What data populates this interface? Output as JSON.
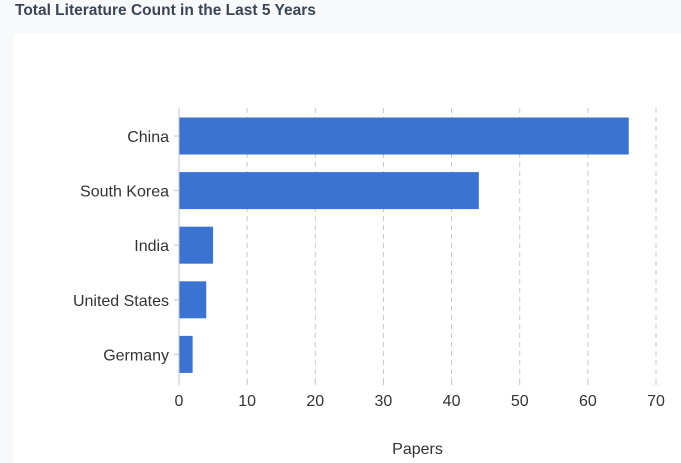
{
  "header": {
    "title": "Total Literature Count in the Last 5 Years"
  },
  "chart_data": {
    "type": "bar",
    "orientation": "horizontal",
    "categories": [
      "China",
      "South Korea",
      "India",
      "United States",
      "Germany"
    ],
    "values": [
      66,
      44,
      5,
      4,
      2
    ],
    "xlabel": "Papers",
    "ylabel": "",
    "xlim": [
      0,
      70
    ],
    "xticks": [
      0,
      10,
      20,
      30,
      40,
      50,
      60,
      70
    ],
    "grid": "vertical-dashed",
    "legend": "none",
    "bar_color": "#3a73d1"
  }
}
